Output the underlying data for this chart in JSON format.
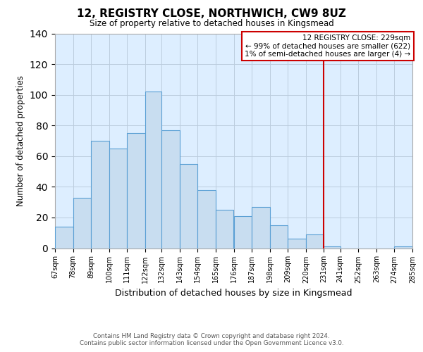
{
  "title": "12, REGISTRY CLOSE, NORTHWICH, CW9 8UZ",
  "subtitle": "Size of property relative to detached houses in Kingsmead",
  "xlabel": "Distribution of detached houses by size in Kingsmead",
  "ylabel": "Number of detached properties",
  "bar_edges": [
    67,
    78,
    89,
    100,
    111,
    122,
    132,
    143,
    154,
    165,
    176,
    187,
    198,
    209,
    220,
    231,
    241,
    252,
    263,
    274,
    285
  ],
  "bar_heights": [
    14,
    33,
    70,
    65,
    75,
    102,
    77,
    55,
    38,
    25,
    21,
    27,
    15,
    6,
    9,
    1,
    0,
    0,
    0,
    1
  ],
  "bar_color": "#c8ddf0",
  "bar_edge_color": "#5a9fd4",
  "tick_labels": [
    "67sqm",
    "78sqm",
    "89sqm",
    "100sqm",
    "111sqm",
    "122sqm",
    "132sqm",
    "143sqm",
    "154sqm",
    "165sqm",
    "176sqm",
    "187sqm",
    "198sqm",
    "209sqm",
    "220sqm",
    "231sqm",
    "241sqm",
    "252sqm",
    "263sqm",
    "274sqm",
    "285sqm"
  ],
  "ylim": [
    0,
    140
  ],
  "yticks": [
    0,
    20,
    40,
    60,
    80,
    100,
    120,
    140
  ],
  "property_line_x": 231,
  "property_line_color": "#cc0000",
  "legend_title": "12 REGISTRY CLOSE: 229sqm",
  "legend_line1": "← 99% of detached houses are smaller (622)",
  "legend_line2": "1% of semi-detached houses are larger (4) →",
  "legend_box_color": "#cc0000",
  "footer_line1": "Contains HM Land Registry data © Crown copyright and database right 2024.",
  "footer_line2": "Contains public sector information licensed under the Open Government Licence v3.0.",
  "background_color": "#ffffff",
  "axes_bg_color": "#ddeeff",
  "grid_color": "#bbccdd"
}
